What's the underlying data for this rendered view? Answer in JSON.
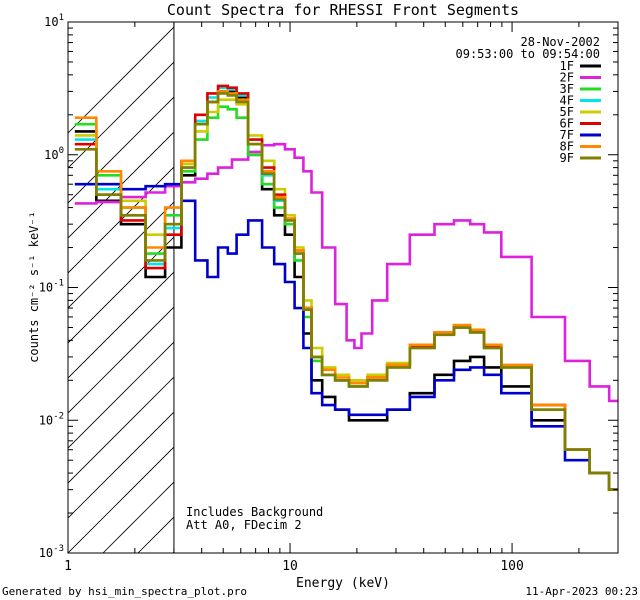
{
  "chart_data": {
    "type": "line",
    "title": "Count Spectra for RHESSI Front Segments",
    "xlabel": "Energy (keV)",
    "ylabel": "counts cm⁻² s⁻¹ keV⁻¹",
    "xscale": "log",
    "yscale": "log",
    "xlim": [
      1,
      300
    ],
    "ylim": [
      0.001,
      10
    ],
    "x_ticks": [
      {
        "value": 1,
        "label": "1"
      },
      {
        "value": 10,
        "label": "10"
      },
      {
        "value": 100,
        "label": "100"
      }
    ],
    "y_ticks": [
      {
        "value": 0.001,
        "base": "10",
        "exp": "-3"
      },
      {
        "value": 0.01,
        "base": "10",
        "exp": "-2"
      },
      {
        "value": 0.1,
        "base": "10",
        "exp": "-1"
      },
      {
        "value": 1,
        "base": "10",
        "exp": "0"
      },
      {
        "value": 10,
        "base": "10",
        "exp": "1"
      }
    ],
    "excluded_region": {
      "from": 1,
      "to": 3
    },
    "date": "28-Nov-2002",
    "time_range": "09:53:00 to 09:54:00",
    "notes": [
      "Includes Background",
      "Att A0, FDecim 2"
    ],
    "legend_position": "top-right",
    "series": [
      {
        "name": "1F",
        "color": "#000000",
        "energy": [
          1.2,
          1.5,
          2,
          2.5,
          3,
          3.5,
          4,
          4.5,
          5,
          5.5,
          6,
          7,
          8,
          9,
          10,
          11,
          12,
          13,
          15,
          17,
          20,
          25,
          30,
          40,
          50,
          60,
          70,
          80,
          100,
          150,
          200,
          250,
          300
        ],
        "values": [
          1.5,
          0.45,
          0.3,
          0.12,
          0.2,
          0.7,
          1.7,
          2.5,
          3.0,
          3.0,
          2.7,
          1.0,
          0.55,
          0.35,
          0.25,
          0.12,
          0.045,
          0.02,
          0.015,
          0.012,
          0.01,
          0.01,
          0.012,
          0.016,
          0.022,
          0.028,
          0.03,
          0.025,
          0.018,
          0.01,
          0.006,
          0.004,
          0.003
        ]
      },
      {
        "name": "2F",
        "color": "#dd22dd",
        "energy": [
          1.2,
          1.5,
          2,
          2.5,
          3,
          3.5,
          4,
          4.5,
          5,
          6,
          7,
          8,
          9,
          10,
          11,
          12,
          13,
          15,
          17,
          19,
          20,
          22,
          25,
          30,
          40,
          50,
          60,
          70,
          80,
          100,
          150,
          200,
          250,
          300
        ],
        "values": [
          0.43,
          0.44,
          0.48,
          0.52,
          0.58,
          0.62,
          0.66,
          0.72,
          0.8,
          0.92,
          1.05,
          1.18,
          1.2,
          1.1,
          0.95,
          0.75,
          0.52,
          0.2,
          0.075,
          0.04,
          0.035,
          0.045,
          0.08,
          0.15,
          0.25,
          0.3,
          0.32,
          0.3,
          0.26,
          0.17,
          0.06,
          0.028,
          0.018,
          0.014
        ]
      },
      {
        "name": "3F",
        "color": "#22dd22",
        "energy": [
          1.2,
          1.5,
          2,
          2.5,
          3,
          3.5,
          4,
          4.5,
          5,
          5.5,
          6,
          7,
          8,
          9,
          10,
          11,
          12,
          13,
          15,
          17,
          20,
          25,
          30,
          40,
          50,
          60,
          70,
          80,
          100,
          150,
          200,
          250,
          300
        ],
        "values": [
          1.7,
          0.7,
          0.4,
          0.18,
          0.35,
          0.75,
          1.3,
          1.9,
          2.3,
          2.2,
          1.9,
          1.0,
          0.6,
          0.4,
          0.3,
          0.16,
          0.06,
          0.028,
          0.022,
          0.02,
          0.018,
          0.02,
          0.025,
          0.035,
          0.045,
          0.05,
          0.046,
          0.035,
          0.025,
          0.012,
          0.006,
          0.004,
          0.003
        ]
      },
      {
        "name": "4F",
        "color": "#00e6e6",
        "energy": [
          1.2,
          1.5,
          2,
          2.5,
          3,
          3.5,
          4,
          4.5,
          5,
          5.5,
          6,
          7,
          8,
          9,
          10,
          11,
          12,
          13,
          15,
          17,
          20,
          25,
          30,
          40,
          50,
          60,
          70,
          80,
          100,
          150,
          200,
          250,
          300
        ],
        "values": [
          1.3,
          0.55,
          0.35,
          0.15,
          0.28,
          0.8,
          1.8,
          2.7,
          3.2,
          3.1,
          2.8,
          1.2,
          0.7,
          0.45,
          0.32,
          0.18,
          0.07,
          0.03,
          0.022,
          0.02,
          0.018,
          0.02,
          0.026,
          0.036,
          0.045,
          0.05,
          0.046,
          0.036,
          0.026,
          0.013,
          0.006,
          0.004,
          0.003
        ]
      },
      {
        "name": "5F",
        "color": "#cccc00",
        "energy": [
          1.2,
          1.5,
          2,
          2.5,
          3,
          3.5,
          4,
          4.5,
          5,
          5.5,
          6,
          7,
          8,
          9,
          10,
          11,
          12,
          13,
          15,
          17,
          20,
          25,
          30,
          40,
          50,
          60,
          70,
          80,
          100,
          150,
          200,
          250,
          300
        ],
        "values": [
          1.4,
          0.6,
          0.45,
          0.25,
          0.3,
          0.85,
          1.5,
          2.1,
          2.6,
          2.6,
          2.4,
          1.4,
          0.9,
          0.55,
          0.35,
          0.2,
          0.08,
          0.035,
          0.025,
          0.022,
          0.02,
          0.022,
          0.027,
          0.036,
          0.046,
          0.052,
          0.048,
          0.037,
          0.026,
          0.013,
          0.006,
          0.004,
          0.003
        ]
      },
      {
        "name": "6F",
        "color": "#dd0000",
        "energy": [
          1.2,
          1.5,
          2,
          2.5,
          3,
          3.5,
          4,
          4.5,
          5,
          5.5,
          6,
          7,
          8,
          9,
          10,
          11,
          12,
          13,
          15,
          17,
          20,
          25,
          30,
          40,
          50,
          60,
          70,
          80,
          100,
          150,
          200,
          250,
          300
        ],
        "values": [
          1.2,
          0.5,
          0.32,
          0.14,
          0.25,
          0.9,
          2.0,
          2.9,
          3.3,
          3.2,
          2.9,
          1.3,
          0.8,
          0.5,
          0.33,
          0.19,
          0.07,
          0.03,
          0.022,
          0.02,
          0.019,
          0.021,
          0.026,
          0.036,
          0.045,
          0.05,
          0.046,
          0.036,
          0.026,
          0.013,
          0.006,
          0.004,
          0.003
        ]
      },
      {
        "name": "7F",
        "color": "#0000cc",
        "energy": [
          1.2,
          1.5,
          2,
          2.5,
          3,
          3.5,
          4,
          4.5,
          5,
          5.5,
          6,
          7,
          8,
          9,
          10,
          11,
          12,
          13,
          15,
          17,
          20,
          25,
          30,
          40,
          50,
          60,
          70,
          80,
          100,
          150,
          200,
          250,
          300
        ],
        "values": [
          0.6,
          0.6,
          0.55,
          0.58,
          0.6,
          0.45,
          0.16,
          0.12,
          0.2,
          0.18,
          0.25,
          0.32,
          0.2,
          0.15,
          0.11,
          0.07,
          0.035,
          0.016,
          0.013,
          0.012,
          0.011,
          0.011,
          0.012,
          0.015,
          0.02,
          0.024,
          0.025,
          0.022,
          0.016,
          0.009,
          0.005,
          0.004,
          0.003
        ]
      },
      {
        "name": "8F",
        "color": "#ff8800",
        "energy": [
          1.2,
          1.5,
          2,
          2.5,
          3,
          3.5,
          4,
          4.5,
          5,
          5.5,
          6,
          7,
          8,
          9,
          10,
          11,
          12,
          13,
          15,
          17,
          20,
          25,
          30,
          40,
          50,
          60,
          70,
          80,
          100,
          150,
          200,
          250,
          300
        ],
        "values": [
          1.9,
          0.75,
          0.4,
          0.2,
          0.4,
          0.9,
          1.7,
          2.5,
          3.0,
          2.9,
          2.6,
          1.2,
          0.75,
          0.48,
          0.33,
          0.19,
          0.07,
          0.03,
          0.024,
          0.021,
          0.019,
          0.021,
          0.026,
          0.037,
          0.046,
          0.052,
          0.048,
          0.037,
          0.026,
          0.013,
          0.006,
          0.004,
          0.003
        ]
      },
      {
        "name": "9F",
        "color": "#808000",
        "energy": [
          1.2,
          1.5,
          2,
          2.5,
          3,
          3.5,
          4,
          4.5,
          5,
          5.5,
          6,
          7,
          8,
          9,
          10,
          11,
          12,
          13,
          15,
          17,
          20,
          25,
          30,
          40,
          50,
          60,
          70,
          80,
          100,
          150,
          200,
          250,
          300
        ],
        "values": [
          1.1,
          0.5,
          0.35,
          0.16,
          0.3,
          0.8,
          1.7,
          2.5,
          2.9,
          2.8,
          2.5,
          1.2,
          0.72,
          0.46,
          0.32,
          0.18,
          0.068,
          0.03,
          0.022,
          0.02,
          0.018,
          0.02,
          0.025,
          0.035,
          0.044,
          0.05,
          0.046,
          0.035,
          0.025,
          0.012,
          0.006,
          0.004,
          0.003
        ]
      }
    ]
  },
  "footer": {
    "left": "Generated by hsi_min_spectra_plot.pro",
    "right": "11-Apr-2023 00:23"
  }
}
